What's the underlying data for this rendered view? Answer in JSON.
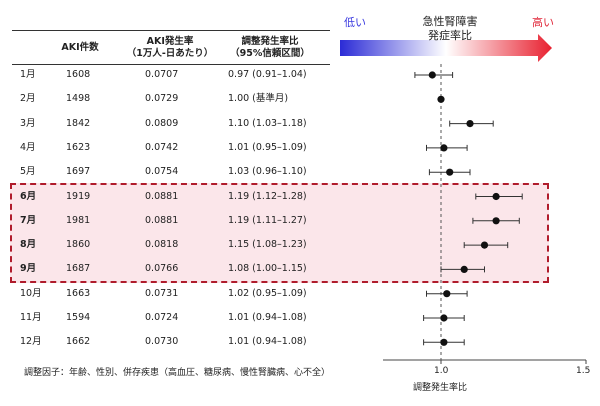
{
  "table": {
    "col_aki": "AKI件数",
    "col_rate": [
      "AKI発生率",
      "（1万人-日あたり）"
    ],
    "col_ratio": [
      "調整発生率比",
      "（95%信頼区間）"
    ],
    "rows": [
      {
        "month": "1月",
        "count": "1608",
        "rate": "0.0707",
        "ratio": "0.97 (0.91–1.04)",
        "highlight": false
      },
      {
        "month": "2月",
        "count": "1498",
        "rate": "0.0729",
        "ratio": "1.00 (基準月)",
        "highlight": false
      },
      {
        "month": "3月",
        "count": "1842",
        "rate": "0.0809",
        "ratio": "1.10 (1.03–1.18)",
        "highlight": false
      },
      {
        "month": "4月",
        "count": "1623",
        "rate": "0.0742",
        "ratio": "1.01 (0.95–1.09)",
        "highlight": false
      },
      {
        "month": "5月",
        "count": "1697",
        "rate": "0.0754",
        "ratio": "1.03 (0.96–1.10)",
        "highlight": false
      },
      {
        "month": "6月",
        "count": "1919",
        "rate": "0.0881",
        "ratio": "1.19 (1.12–1.28)",
        "highlight": true
      },
      {
        "month": "7月",
        "count": "1981",
        "rate": "0.0881",
        "ratio": "1.19 (1.11–1.27)",
        "highlight": true
      },
      {
        "month": "8月",
        "count": "1860",
        "rate": "0.0818",
        "ratio": "1.15 (1.08–1.23)",
        "highlight": true
      },
      {
        "month": "9月",
        "count": "1687",
        "rate": "0.0766",
        "ratio": "1.08 (1.00–1.15)",
        "highlight": true
      },
      {
        "month": "10月",
        "count": "1663",
        "rate": "0.0731",
        "ratio": "1.02 (0.95–1.09)",
        "highlight": false
      },
      {
        "month": "11月",
        "count": "1594",
        "rate": "0.0724",
        "ratio": "1.01 (0.94–1.08)",
        "highlight": false
      },
      {
        "month": "12月",
        "count": "1662",
        "rate": "0.0730",
        "ratio": "1.01 (0.94–1.08)",
        "highlight": false
      }
    ]
  },
  "legend": {
    "title": [
      "急性腎障害",
      "発症率比"
    ],
    "low": "低い",
    "high": "高い",
    "low_color": "#2b2bd6",
    "high_color": "#e8202f"
  },
  "footnote": "調整因子：年齢、性別、併存疾患（高血圧、糖尿病、慢性腎臓病、心不全）",
  "chart_data": {
    "type": "scatter",
    "title": "",
    "xlabel": "調整発生率比",
    "ylabel": "",
    "xlim": [
      0.8,
      1.5
    ],
    "xticks": [
      1.0,
      1.5
    ],
    "xtick_labels": [
      "1.0",
      "1.5"
    ],
    "reference_line": 1.0,
    "categories": [
      "1月",
      "2月",
      "3月",
      "4月",
      "5月",
      "6月",
      "7月",
      "8月",
      "9月",
      "10月",
      "11月",
      "12月"
    ],
    "estimate": [
      0.97,
      1.0,
      1.1,
      1.01,
      1.03,
      1.19,
      1.19,
      1.15,
      1.08,
      1.02,
      1.01,
      1.01
    ],
    "ci_low": [
      0.91,
      null,
      1.03,
      0.95,
      0.96,
      1.12,
      1.11,
      1.08,
      1.0,
      0.95,
      0.94,
      0.94
    ],
    "ci_high": [
      1.04,
      null,
      1.18,
      1.09,
      1.1,
      1.28,
      1.27,
      1.23,
      1.15,
      1.09,
      1.08,
      1.08
    ],
    "highlight_months": [
      "6月",
      "7月",
      "8月",
      "9月"
    ],
    "highlight_color": "#b01c2c"
  }
}
